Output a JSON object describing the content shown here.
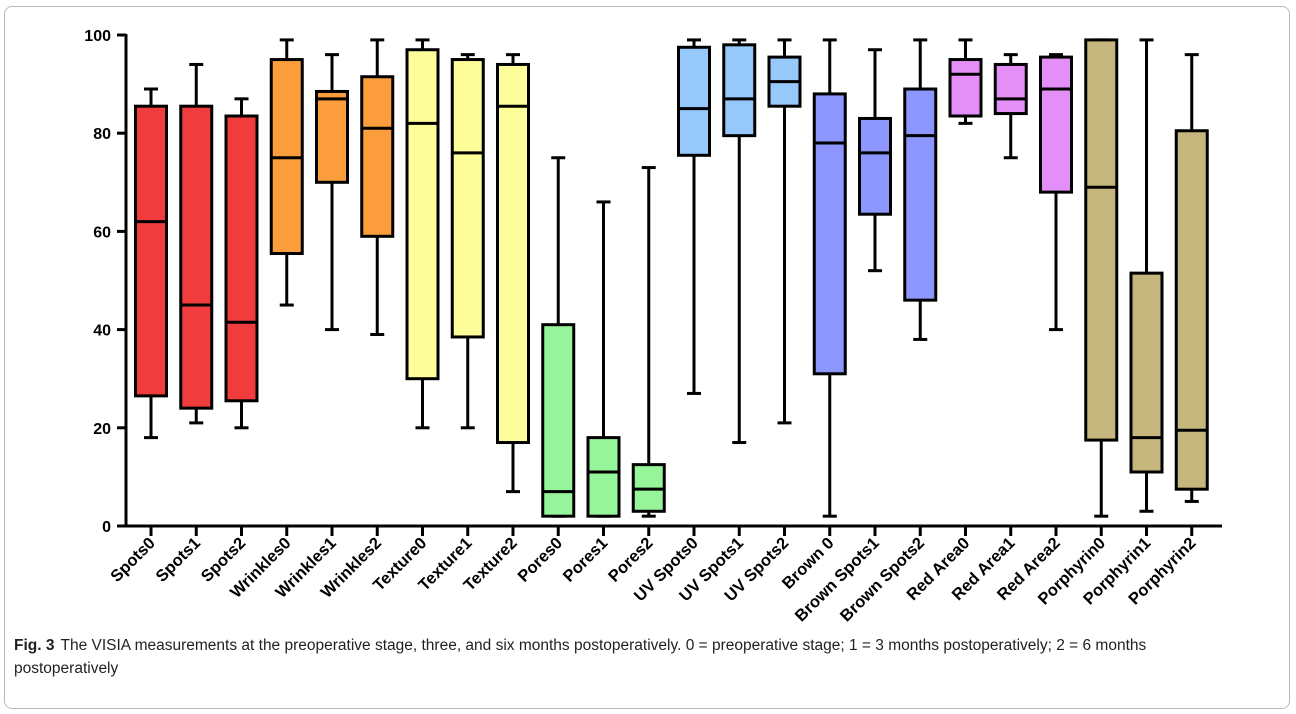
{
  "chart_data": {
    "type": "boxplot",
    "ylim": [
      0,
      100
    ],
    "yticks": [
      "0",
      "20",
      "40",
      "60",
      "80",
      "100"
    ],
    "grid": false,
    "categories": [
      "Spots0",
      "Spots1",
      "Spots2",
      "Wrinkles0",
      "Wrinkles1",
      "Wrinkles2",
      "Texture0",
      "Texture1",
      "Texture2",
      "Pores0",
      "Pores1",
      "Pores2",
      "UV Spots0",
      "UV Spots1",
      "UV Spots2",
      "Brown 0",
      "Brown Spots1",
      "Brown Spots2",
      "Red Area0",
      "Red Area1",
      "Red Area2",
      "Porphyrin0",
      "Porphyrin1",
      "Porphyrin2"
    ],
    "boxes": [
      {
        "min": 18,
        "q1": 26.5,
        "median": 62,
        "q3": 85.5,
        "max": 89,
        "color": "#f03c3c"
      },
      {
        "min": 21,
        "q1": 24,
        "median": 45,
        "q3": 85.5,
        "max": 94,
        "color": "#f03c3c"
      },
      {
        "min": 20,
        "q1": 25.5,
        "median": 41.5,
        "q3": 83.5,
        "max": 87,
        "color": "#f03c3c"
      },
      {
        "min": 45,
        "q1": 55.5,
        "median": 75,
        "q3": 95,
        "max": 99,
        "color": "#fb9d3c"
      },
      {
        "min": 40,
        "q1": 70,
        "median": 87,
        "q3": 88.5,
        "max": 96,
        "color": "#fb9d3c"
      },
      {
        "min": 39,
        "q1": 59,
        "median": 81,
        "q3": 91.5,
        "max": 99,
        "color": "#fb9d3c"
      },
      {
        "min": 20,
        "q1": 30,
        "median": 82,
        "q3": 97,
        "max": 99,
        "color": "#fdfd9a"
      },
      {
        "min": 20,
        "q1": 38.5,
        "median": 76,
        "q3": 95,
        "max": 96,
        "color": "#fdfd9a"
      },
      {
        "min": 7,
        "q1": 17,
        "median": 85.5,
        "q3": 94,
        "max": 96,
        "color": "#fdfd9a"
      },
      {
        "min": 2,
        "q1": 2,
        "median": 7,
        "q3": 41,
        "max": 75,
        "color": "#96f59a"
      },
      {
        "min": 2,
        "q1": 2,
        "median": 11,
        "q3": 18,
        "max": 66,
        "color": "#96f59a"
      },
      {
        "min": 2,
        "q1": 3,
        "median": 7.5,
        "q3": 12.5,
        "max": 73,
        "color": "#96f59a"
      },
      {
        "min": 27,
        "q1": 75.5,
        "median": 85,
        "q3": 97.5,
        "max": 99,
        "color": "#96c8fc"
      },
      {
        "min": 17,
        "q1": 79.5,
        "median": 87,
        "q3": 98,
        "max": 99,
        "color": "#96c8fc"
      },
      {
        "min": 21,
        "q1": 85.5,
        "median": 90.5,
        "q3": 95.5,
        "max": 99,
        "color": "#96c8fc"
      },
      {
        "min": 2,
        "q1": 31,
        "median": 78,
        "q3": 88,
        "max": 99,
        "color": "#8c96fc"
      },
      {
        "min": 52,
        "q1": 63.5,
        "median": 76,
        "q3": 83,
        "max": 97,
        "color": "#8c96fc"
      },
      {
        "min": 38,
        "q1": 46,
        "median": 79.5,
        "q3": 89,
        "max": 99,
        "color": "#8c96fc"
      },
      {
        "min": 82,
        "q1": 83.5,
        "median": 92,
        "q3": 95,
        "max": 99,
        "color": "#e48ef8"
      },
      {
        "min": 75,
        "q1": 84,
        "median": 87,
        "q3": 94,
        "max": 96,
        "color": "#e48ef8"
      },
      {
        "min": 40,
        "q1": 68,
        "median": 89,
        "q3": 95.5,
        "max": 96,
        "color": "#e48ef8"
      },
      {
        "min": 2,
        "q1": 17.5,
        "median": 69,
        "q3": 99,
        "max": 99,
        "color": "#c4b67c"
      },
      {
        "min": 3,
        "q1": 11,
        "median": 18,
        "q3": 51.5,
        "max": 99,
        "color": "#c4b67c"
      },
      {
        "min": 5,
        "q1": 7.5,
        "median": 19.5,
        "q3": 80.5,
        "max": 96,
        "color": "#c4b67c"
      }
    ]
  },
  "caption": {
    "label": "Fig. 3",
    "text": "The VISIA measurements at the preoperative stage, three, and six months postoperatively. 0 = preoperative stage; 1 = 3 months postoperatively; 2 = 6 months postoperatively"
  }
}
